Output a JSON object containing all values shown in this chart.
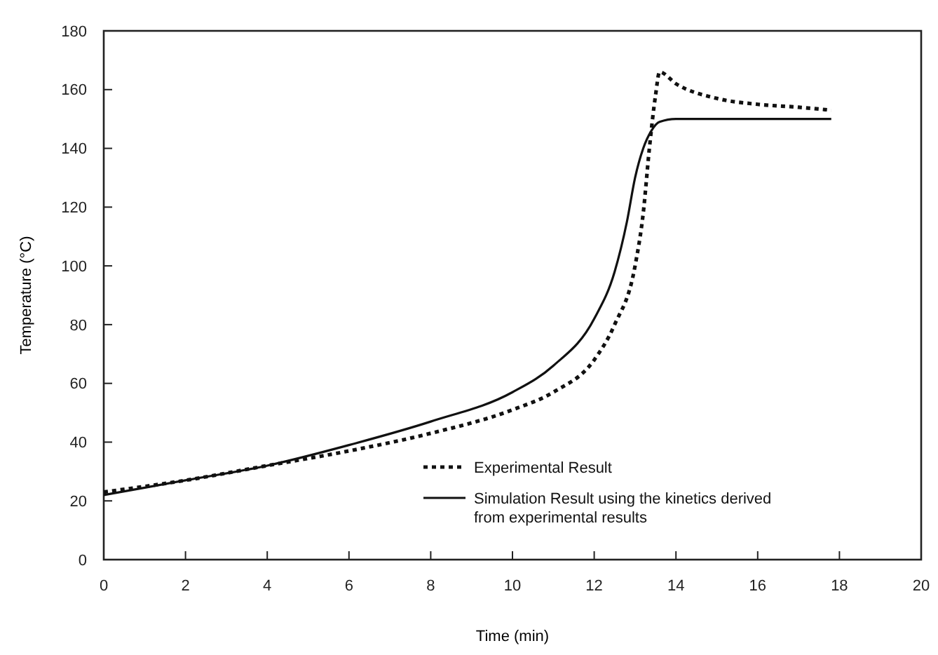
{
  "chart_data": {
    "type": "line",
    "xlabel": "Time (min)",
    "ylabel": "Temperature (°C)",
    "xlim": [
      0,
      20
    ],
    "ylim": [
      0,
      180
    ],
    "xticks": [
      0,
      2,
      4,
      6,
      8,
      10,
      12,
      14,
      16,
      18,
      20
    ],
    "yticks": [
      0,
      20,
      40,
      60,
      80,
      100,
      120,
      140,
      160,
      180
    ],
    "grid": false,
    "legend": "bottom right",
    "series": [
      {
        "name": "Experimental Result",
        "color": "#111111",
        "line_style": "dotted",
        "x": [
          0,
          2,
          4,
          6,
          8,
          10,
          11,
          12,
          12.5,
          13,
          13.2,
          13.35,
          13.5,
          13.6,
          14,
          15,
          16,
          17,
          17.8
        ],
        "values": [
          23,
          27,
          32,
          37,
          43,
          51,
          57,
          68,
          80,
          100,
          118,
          140,
          158,
          166,
          162,
          157,
          155,
          154,
          153
        ]
      },
      {
        "name": "Simulation Result using the kinetics derived from experimental results",
        "color": "#111111",
        "line_style": "solid",
        "x": [
          0,
          2,
          4,
          6,
          8,
          10,
          11,
          12,
          12.5,
          12.8,
          13,
          13.2,
          13.4,
          13.6,
          14,
          16,
          17.8
        ],
        "values": [
          22,
          27,
          32,
          39,
          47,
          57,
          66,
          82,
          98,
          115,
          130,
          140,
          146,
          149,
          150,
          150,
          150
        ]
      }
    ]
  }
}
